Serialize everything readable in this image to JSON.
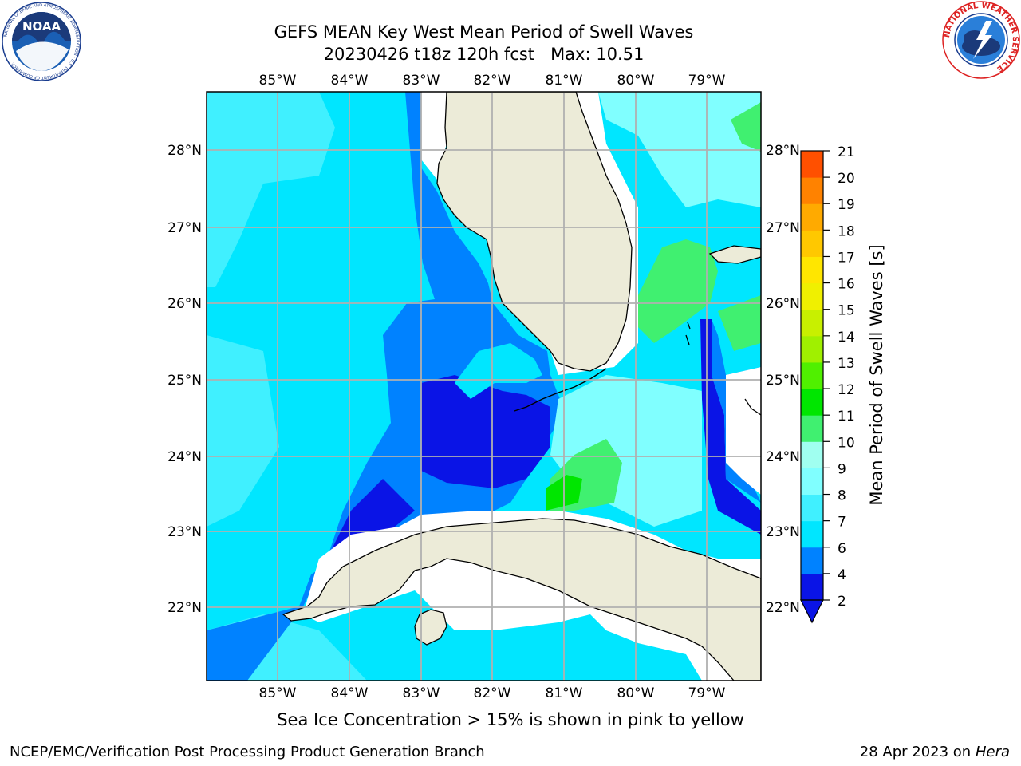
{
  "header": {
    "title_line1": "GEFS MEAN Key West Mean Period of Swell Waves",
    "title_line2": "20230426 t18z 120h fcst   Max: 10.51"
  },
  "map": {
    "lon_labels_top": [
      "85°W",
      "84°W",
      "83°W",
      "82°W",
      "81°W",
      "80°W",
      "79°W"
    ],
    "lon_labels_bottom": [
      "85°W",
      "84°W",
      "83°W",
      "82°W",
      "81°W",
      "80°W",
      "79°W"
    ],
    "lat_labels_left": [
      "28°N",
      "27°N",
      "26°N",
      "25°N",
      "24°N",
      "23°N",
      "22°N"
    ],
    "lat_labels_right": [
      "28°N",
      "27°N",
      "26°N",
      "25°N",
      "24°N",
      "23°N",
      "22°N"
    ],
    "land_color": "#ecebd8",
    "grid_color": "#b0b0b0"
  },
  "colorbar": {
    "label": "Mean Period of Swell Waves [s]",
    "ticks": [
      "2",
      "4",
      "6",
      "7",
      "8",
      "9",
      "10",
      "11",
      "12",
      "13",
      "14",
      "15",
      "16",
      "17",
      "18",
      "19",
      "20",
      "21"
    ],
    "colors": [
      "#0a14e6",
      "#0082ff",
      "#00e6ff",
      "#40f0ff",
      "#80ffff",
      "#a0fff0",
      "#40f070",
      "#00e600",
      "#50f000",
      "#a0f000",
      "#c8f000",
      "#f0f000",
      "#ffe600",
      "#ffc800",
      "#ffaa00",
      "#ff8200",
      "#ff5000",
      "#ff2800",
      "#ff0000"
    ]
  },
  "caption": "Sea Ice Concentration > 15% is shown in pink to yellow",
  "footer": {
    "left": "NCEP/EMC/Verification Post Processing Product Generation Branch",
    "date": "28 Apr 2023 on ",
    "host": "Hera"
  },
  "logos": {
    "noaa_text": "NOAA",
    "noaa_ring": "NATIONAL OCEANIC AND ATMOSPHERIC ADMINISTRATION · U.S. DEPARTMENT OF COMMERCE",
    "nws_ring": "NATIONAL WEATHER SERVICE"
  }
}
